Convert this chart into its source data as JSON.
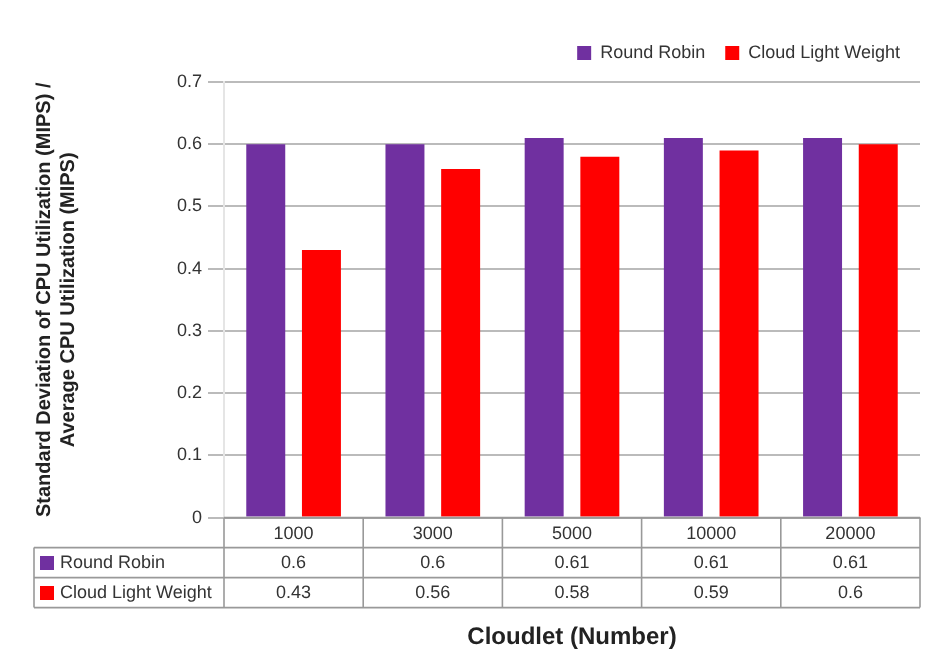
{
  "chart_data": {
    "type": "bar",
    "xlabel": "Cloudlet (Number)",
    "ylabel": "Standard Deviation of CPU Utilization (MIPS) / Average CPU Utilization (MIPS)",
    "categories": [
      "1000",
      "3000",
      "5000",
      "10000",
      "20000"
    ],
    "series": [
      {
        "name": "Round Robin",
        "color": "#7030a0",
        "values": [
          0.6,
          0.6,
          0.61,
          0.61,
          0.61
        ]
      },
      {
        "name": "Cloud Light Weight",
        "color": "#ff0000",
        "values": [
          0.43,
          0.56,
          0.58,
          0.59,
          0.6
        ]
      }
    ],
    "ylim": [
      0,
      0.7
    ],
    "yticks": [
      0,
      0.1,
      0.2,
      0.3,
      0.4,
      0.5,
      0.6,
      0.7
    ],
    "grid": "y",
    "legend": "top right",
    "data_labels": true
  }
}
